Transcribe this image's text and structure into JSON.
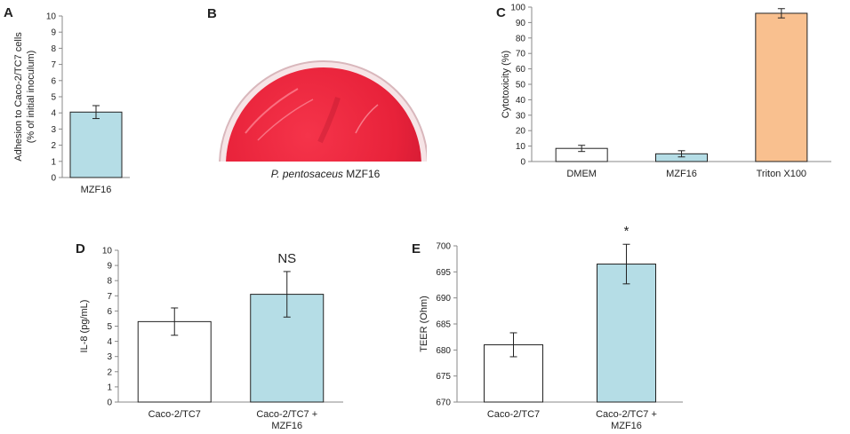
{
  "panels": [
    {
      "label": "A",
      "type": "bar",
      "ylabel": [
        "Adhesion to Caco-2/TC7 cells",
        "(% of initial inoculum)"
      ],
      "ylim": [
        0,
        10
      ],
      "yticks": [
        0,
        1,
        2,
        3,
        4,
        5,
        6,
        7,
        8,
        9,
        10
      ],
      "categories": [
        "MZF16"
      ],
      "values": [
        4.05
      ],
      "errors": [
        0.4
      ],
      "colors": [
        "#b5dde6"
      ],
      "annotations": [
        ""
      ]
    },
    {
      "label": "C",
      "type": "bar",
      "ylabel": [
        "Cytotoxicity (%)"
      ],
      "ylim": [
        0,
        100
      ],
      "yticks": [
        0,
        10,
        20,
        30,
        40,
        50,
        60,
        70,
        80,
        90,
        100
      ],
      "categories": [
        "DMEM",
        "MZF16",
        "Triton X100"
      ],
      "values": [
        8.5,
        5.0,
        96.0
      ],
      "errors": [
        2.0,
        2.0,
        3.0
      ],
      "colors": [
        "#ffffff",
        "#b5dde6",
        "#f9c08f"
      ],
      "annotations": [
        "",
        "",
        ""
      ]
    },
    {
      "label": "D",
      "type": "bar",
      "ylabel": [
        "IL-8 (pg/mL)"
      ],
      "ylim": [
        0,
        10
      ],
      "yticks": [
        0,
        1,
        2,
        3,
        4,
        5,
        6,
        7,
        8,
        9,
        10
      ],
      "categories": [
        [
          "Caco-2/TC7"
        ],
        [
          "Caco-2/TC7 +",
          "MZF16"
        ]
      ],
      "values": [
        5.3,
        7.1
      ],
      "errors": [
        0.9,
        1.5
      ],
      "colors": [
        "#ffffff",
        "#b5dde6"
      ],
      "annotations": [
        "",
        "NS"
      ]
    },
    {
      "label": "E",
      "type": "bar",
      "ylabel": [
        "TEER (Ohm)"
      ],
      "ylim": [
        670,
        700
      ],
      "yticks": [
        670,
        675,
        680,
        685,
        690,
        695,
        700
      ],
      "categories": [
        [
          "Caco-2/TC7"
        ],
        [
          "Caco-2/TC7 +",
          "MZF16"
        ]
      ],
      "values": [
        681.0,
        696.5
      ],
      "errors": [
        2.3,
        3.8
      ],
      "colors": [
        "#ffffff",
        "#b5dde6"
      ],
      "annotations": [
        "",
        "*"
      ]
    }
  ],
  "photo_panel": {
    "label": "B",
    "caption_italic": "P. pentosaceus",
    "caption_rest": " MZF16"
  },
  "chart_data": [
    {
      "type": "bar",
      "panel": "A",
      "categories": [
        "MZF16"
      ],
      "values": [
        4.05
      ],
      "error": [
        0.4
      ],
      "ylabel": "Adhesion to Caco-2/TC7 cells (% of initial inoculum)",
      "ylim": [
        0,
        10
      ]
    },
    {
      "type": "bar",
      "panel": "C",
      "categories": [
        "DMEM",
        "MZF16",
        "Triton X100"
      ],
      "values": [
        8.5,
        5.0,
        96.0
      ],
      "error": [
        2.0,
        2.0,
        3.0
      ],
      "ylabel": "Cytotoxicity (%)",
      "ylim": [
        0,
        100
      ]
    },
    {
      "type": "bar",
      "panel": "D",
      "categories": [
        "Caco-2/TC7",
        "Caco-2/TC7 + MZF16"
      ],
      "values": [
        5.3,
        7.1
      ],
      "error": [
        0.9,
        1.5
      ],
      "ylabel": "IL-8 (pg/mL)",
      "ylim": [
        0,
        10
      ],
      "annotation": "NS"
    },
    {
      "type": "bar",
      "panel": "E",
      "categories": [
        "Caco-2/TC7",
        "Caco-2/TC7 + MZF16"
      ],
      "values": [
        681.0,
        696.5
      ],
      "error": [
        2.3,
        3.8
      ],
      "ylabel": "TEER (Ohm)",
      "ylim": [
        670,
        700
      ],
      "annotation": "*"
    }
  ]
}
